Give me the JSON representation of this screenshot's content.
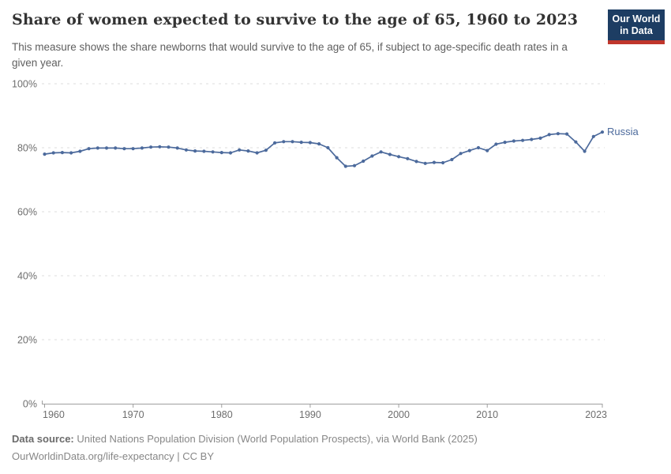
{
  "header": {
    "title": "Share of women expected to survive to the age of 65, 1960 to 2023",
    "subtitle": "This measure shows the share newborns that would survive to the age of 65, if subject to age-specific death rates in a given year.",
    "logo": {
      "line1": "Our World",
      "line2": "in Data",
      "bg_color": "#1d3d63",
      "accent_color": "#c0362c"
    }
  },
  "chart_data": {
    "type": "line",
    "title": "Share of women expected to survive to the age of 65, 1960 to 2023",
    "xlabel": "",
    "ylabel": "",
    "ylim": [
      0,
      100
    ],
    "yticks": [
      0,
      20,
      40,
      60,
      80,
      100
    ],
    "ytick_labels": [
      "0%",
      "20%",
      "40%",
      "60%",
      "80%",
      "100%"
    ],
    "xticks": [
      1960,
      1970,
      1980,
      1990,
      2000,
      2010,
      2023
    ],
    "xlim": [
      1960,
      2023
    ],
    "grid": "horizontal-dashed",
    "legend": "end-of-line-label",
    "series": [
      {
        "name": "Russia",
        "color": "#4c6a9c",
        "years": [
          1960,
          1961,
          1962,
          1963,
          1964,
          1965,
          1966,
          1967,
          1968,
          1969,
          1970,
          1971,
          1972,
          1973,
          1974,
          1975,
          1976,
          1977,
          1978,
          1979,
          1980,
          1981,
          1982,
          1983,
          1984,
          1985,
          1986,
          1987,
          1988,
          1989,
          1990,
          1991,
          1992,
          1993,
          1994,
          1995,
          1996,
          1997,
          1998,
          1999,
          2000,
          2001,
          2002,
          2003,
          2004,
          2005,
          2006,
          2007,
          2008,
          2009,
          2010,
          2011,
          2012,
          2013,
          2014,
          2015,
          2016,
          2017,
          2018,
          2019,
          2020,
          2021,
          2022,
          2023
        ],
        "values": [
          78.0,
          78.4,
          78.5,
          78.4,
          78.9,
          79.7,
          79.9,
          79.9,
          79.9,
          79.7,
          79.7,
          79.9,
          80.2,
          80.3,
          80.2,
          79.9,
          79.3,
          79.0,
          78.9,
          78.7,
          78.5,
          78.4,
          79.3,
          79.0,
          78.4,
          79.2,
          81.5,
          81.9,
          81.9,
          81.7,
          81.6,
          81.2,
          80.0,
          76.9,
          74.2,
          74.4,
          75.8,
          77.4,
          78.7,
          77.9,
          77.2,
          76.6,
          75.7,
          75.1,
          75.4,
          75.3,
          76.3,
          78.2,
          79.1,
          80.0,
          79.1,
          81.1,
          81.7,
          82.1,
          82.3,
          82.6,
          83.0,
          84.1,
          84.4,
          84.3,
          81.8,
          78.9,
          83.5,
          84.9
        ]
      }
    ]
  },
  "footer": {
    "source_label": "Data source:",
    "source_text": " United Nations Population Division (World Population Prospects), via World Bank (2025)",
    "license_line": "OurWorldinData.org/life-expectancy | CC BY"
  }
}
